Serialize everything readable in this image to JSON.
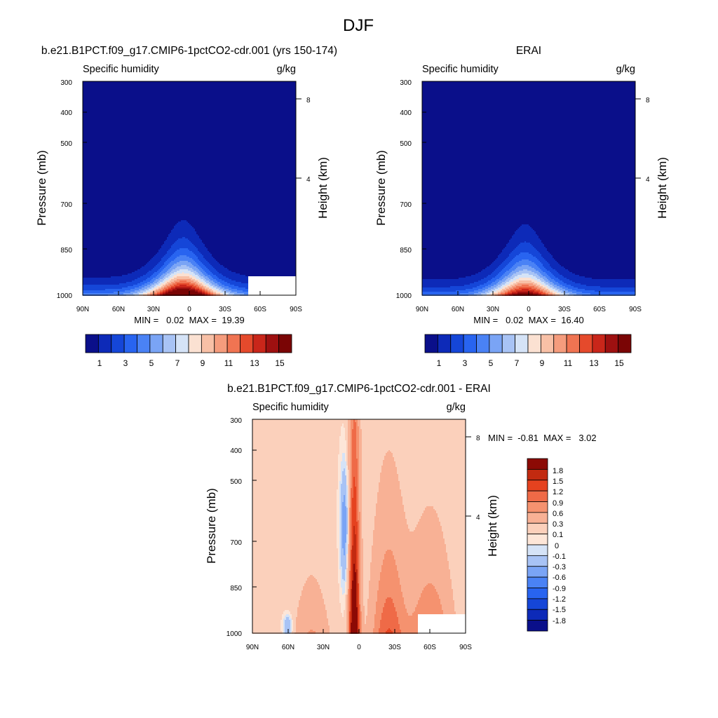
{
  "figure_title": "DJF",
  "chart_data": [
    {
      "type": "heatmap",
      "id": "model",
      "title": "b.e21.B1PCT.f09_g17.CMIP6-1pctCO2-cdr.001 (yrs 150-174)",
      "subtitle_left": "Specific humidity",
      "subtitle_right": "g/kg",
      "ylabel": "Pressure (mb)",
      "ylabel_right": "Height (km)",
      "x_ticks": [
        "90N",
        "60N",
        "30N",
        "0",
        "30S",
        "60S",
        "90S"
      ],
      "y_ticks": [
        "300",
        "400",
        "500",
        "700",
        "850",
        "1000"
      ],
      "y_ticks_right": [
        "8",
        "4"
      ],
      "minmax_label": "MIN =   0.02  MAX =  19.39",
      "min": 0.02,
      "max": 19.39,
      "peak_lat": 5,
      "colorbar_labels": [
        "1",
        "3",
        "5",
        "7",
        "9",
        "11",
        "13",
        "15"
      ]
    },
    {
      "type": "heatmap",
      "id": "obs",
      "title": "ERAI",
      "subtitle_left": "Specific humidity",
      "subtitle_right": "g/kg",
      "ylabel": "Pressure (mb)",
      "ylabel_right": "Height (km)",
      "x_ticks": [
        "90N",
        "60N",
        "30N",
        "0",
        "30S",
        "60S",
        "90S"
      ],
      "y_ticks": [
        "300",
        "400",
        "500",
        "700",
        "850",
        "1000"
      ],
      "y_ticks_right": [
        "8",
        "4"
      ],
      "minmax_label": "MIN =   0.02  MAX =  16.40",
      "min": 0.02,
      "max": 16.4,
      "peak_lat": 3,
      "colorbar_labels": [
        "1",
        "3",
        "5",
        "7",
        "9",
        "11",
        "13",
        "15"
      ]
    },
    {
      "type": "heatmap",
      "id": "diff",
      "title": "b.e21.B1PCT.f09_g17.CMIP6-1pctCO2-cdr.001 - ERAI",
      "subtitle_left": "Specific humidity",
      "subtitle_right": "g/kg",
      "ylabel": "Pressure (mb)",
      "ylabel_right": "Height (km)",
      "x_ticks": [
        "90N",
        "60N",
        "30N",
        "0",
        "30S",
        "60S",
        "90S"
      ],
      "y_ticks": [
        "300",
        "400",
        "500",
        "700",
        "850",
        "1000"
      ],
      "y_ticks_right": [
        "8",
        "4"
      ],
      "minmax_label": "MIN =  -0.81  MAX =   3.02",
      "min": -0.81,
      "max": 3.02,
      "colorbar_labels": [
        "1.8",
        "1.5",
        "1.2",
        "0.9",
        "0.6",
        "0.3",
        "0.1",
        "0",
        "-0.1",
        "-0.3",
        "-0.6",
        "-0.9",
        "-1.2",
        "-1.5",
        "-1.8"
      ]
    }
  ],
  "colors": {
    "abs_palette": [
      "#0a0f8a",
      "#0d2ab8",
      "#1546d8",
      "#2864f0",
      "#4a82f5",
      "#7aa4f5",
      "#a8c3f5",
      "#d5e3f7",
      "#fbe1d2",
      "#f8c0a6",
      "#f59c7d",
      "#f07452",
      "#e54a2c",
      "#c9261a",
      "#9e1010",
      "#7a0505"
    ],
    "diff_palette": [
      "#0a0f8a",
      "#0d2ab8",
      "#1546d8",
      "#2864f0",
      "#4a82f5",
      "#7aa4f5",
      "#a8c3f5",
      "#d5e3f7",
      "#fde6d8",
      "#fbd0bb",
      "#f8b195",
      "#f5926f",
      "#ef6a47",
      "#e5421f",
      "#c22a10",
      "#8c0a05"
    ],
    "missing": "#ffffff"
  }
}
